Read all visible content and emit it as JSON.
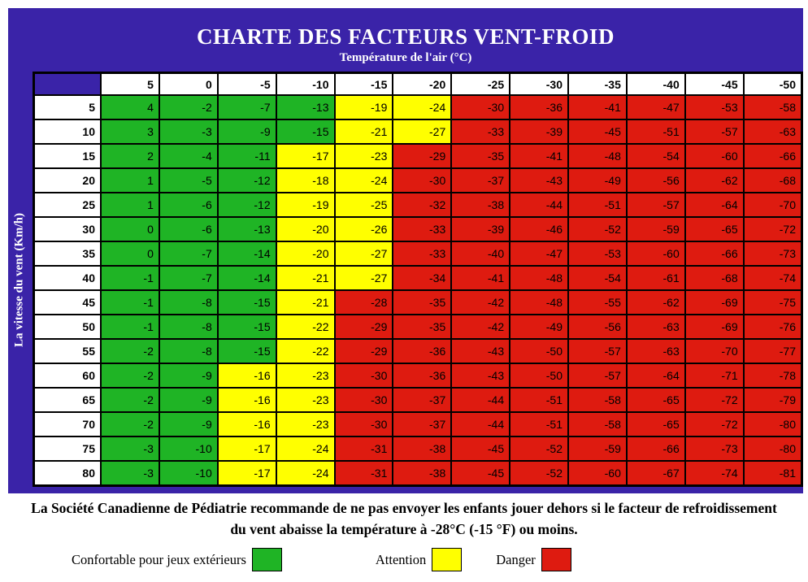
{
  "chart_data": {
    "type": "heatmap",
    "title": "CHARTE DES FACTEURS VENT-FROID",
    "x_axis_label": "Température de l'air (°C)",
    "y_axis_label": "La vitesse du vent (Km/h)",
    "columns": [
      5,
      0,
      -5,
      -10,
      -15,
      -20,
      -25,
      -30,
      -35,
      -40,
      -45,
      -50
    ],
    "rows": [
      5,
      10,
      15,
      20,
      25,
      30,
      35,
      40,
      45,
      50,
      55,
      60,
      65,
      70,
      75,
      80
    ],
    "values": [
      [
        4,
        -2,
        -7,
        -13,
        -19,
        -24,
        -30,
        -36,
        -41,
        -47,
        -53,
        -58
      ],
      [
        3,
        -3,
        -9,
        -15,
        -21,
        -27,
        -33,
        -39,
        -45,
        -51,
        -57,
        -63
      ],
      [
        2,
        -4,
        -11,
        -17,
        -23,
        -29,
        -35,
        -41,
        -48,
        -54,
        -60,
        -66
      ],
      [
        1,
        -5,
        -12,
        -18,
        -24,
        -30,
        -37,
        -43,
        -49,
        -56,
        -62,
        -68
      ],
      [
        1,
        -6,
        -12,
        -19,
        -25,
        -32,
        -38,
        -44,
        -51,
        -57,
        -64,
        -70
      ],
      [
        0,
        -6,
        -13,
        -20,
        -26,
        -33,
        -39,
        -46,
        -52,
        -59,
        -65,
        -72
      ],
      [
        0,
        -7,
        -14,
        -20,
        -27,
        -33,
        -40,
        -47,
        -53,
        -60,
        -66,
        -73
      ],
      [
        -1,
        -7,
        -14,
        -21,
        -27,
        -34,
        -41,
        -48,
        -54,
        -61,
        -68,
        -74
      ],
      [
        -1,
        -8,
        -15,
        -21,
        -28,
        -35,
        -42,
        -48,
        -55,
        -62,
        -69,
        -75
      ],
      [
        -1,
        -8,
        -15,
        -22,
        -29,
        -35,
        -42,
        -49,
        -56,
        -63,
        -69,
        -76
      ],
      [
        -2,
        -8,
        -15,
        -22,
        -29,
        -36,
        -43,
        -50,
        -57,
        -63,
        -70,
        -77
      ],
      [
        -2,
        -9,
        -16,
        -23,
        -30,
        -36,
        -43,
        -50,
        -57,
        -64,
        -71,
        -78
      ],
      [
        -2,
        -9,
        -16,
        -23,
        -30,
        -37,
        -44,
        -51,
        -58,
        -65,
        -72,
        -79
      ],
      [
        -2,
        -9,
        -16,
        -23,
        -30,
        -37,
        -44,
        -51,
        -58,
        -65,
        -72,
        -80
      ],
      [
        -3,
        -10,
        -17,
        -24,
        -31,
        -38,
        -45,
        -52,
        -59,
        -66,
        -73,
        -80
      ],
      [
        -3,
        -10,
        -17,
        -24,
        -31,
        -38,
        -45,
        -52,
        -60,
        -67,
        -74,
        -81
      ]
    ],
    "color_rules": {
      "green_if_value_gte": -15,
      "red_if_value_lte": -28,
      "otherwise": "yellow"
    },
    "grid": true,
    "legend_position": "bottom"
  },
  "note": "La Société Canadienne de Pédiatrie recommande de ne pas envoyer les enfants jouer dehors si le facteur de refroidissement du vent abaisse la température à -28°C (-15 °F) ou moins.",
  "legend": {
    "items": [
      {
        "label": "Confortable pour jeux extérieurs",
        "color_key": "green"
      },
      {
        "label": "Attention",
        "color_key": "yellow"
      },
      {
        "label": "Danger",
        "color_key": "red"
      }
    ]
  },
  "colors": {
    "panel": "#3A23A8",
    "green": "#1FB425",
    "yellow": "#FFFF00",
    "red": "#DE1B10",
    "header_bg": "#FFFFFF",
    "border": "#000000"
  }
}
